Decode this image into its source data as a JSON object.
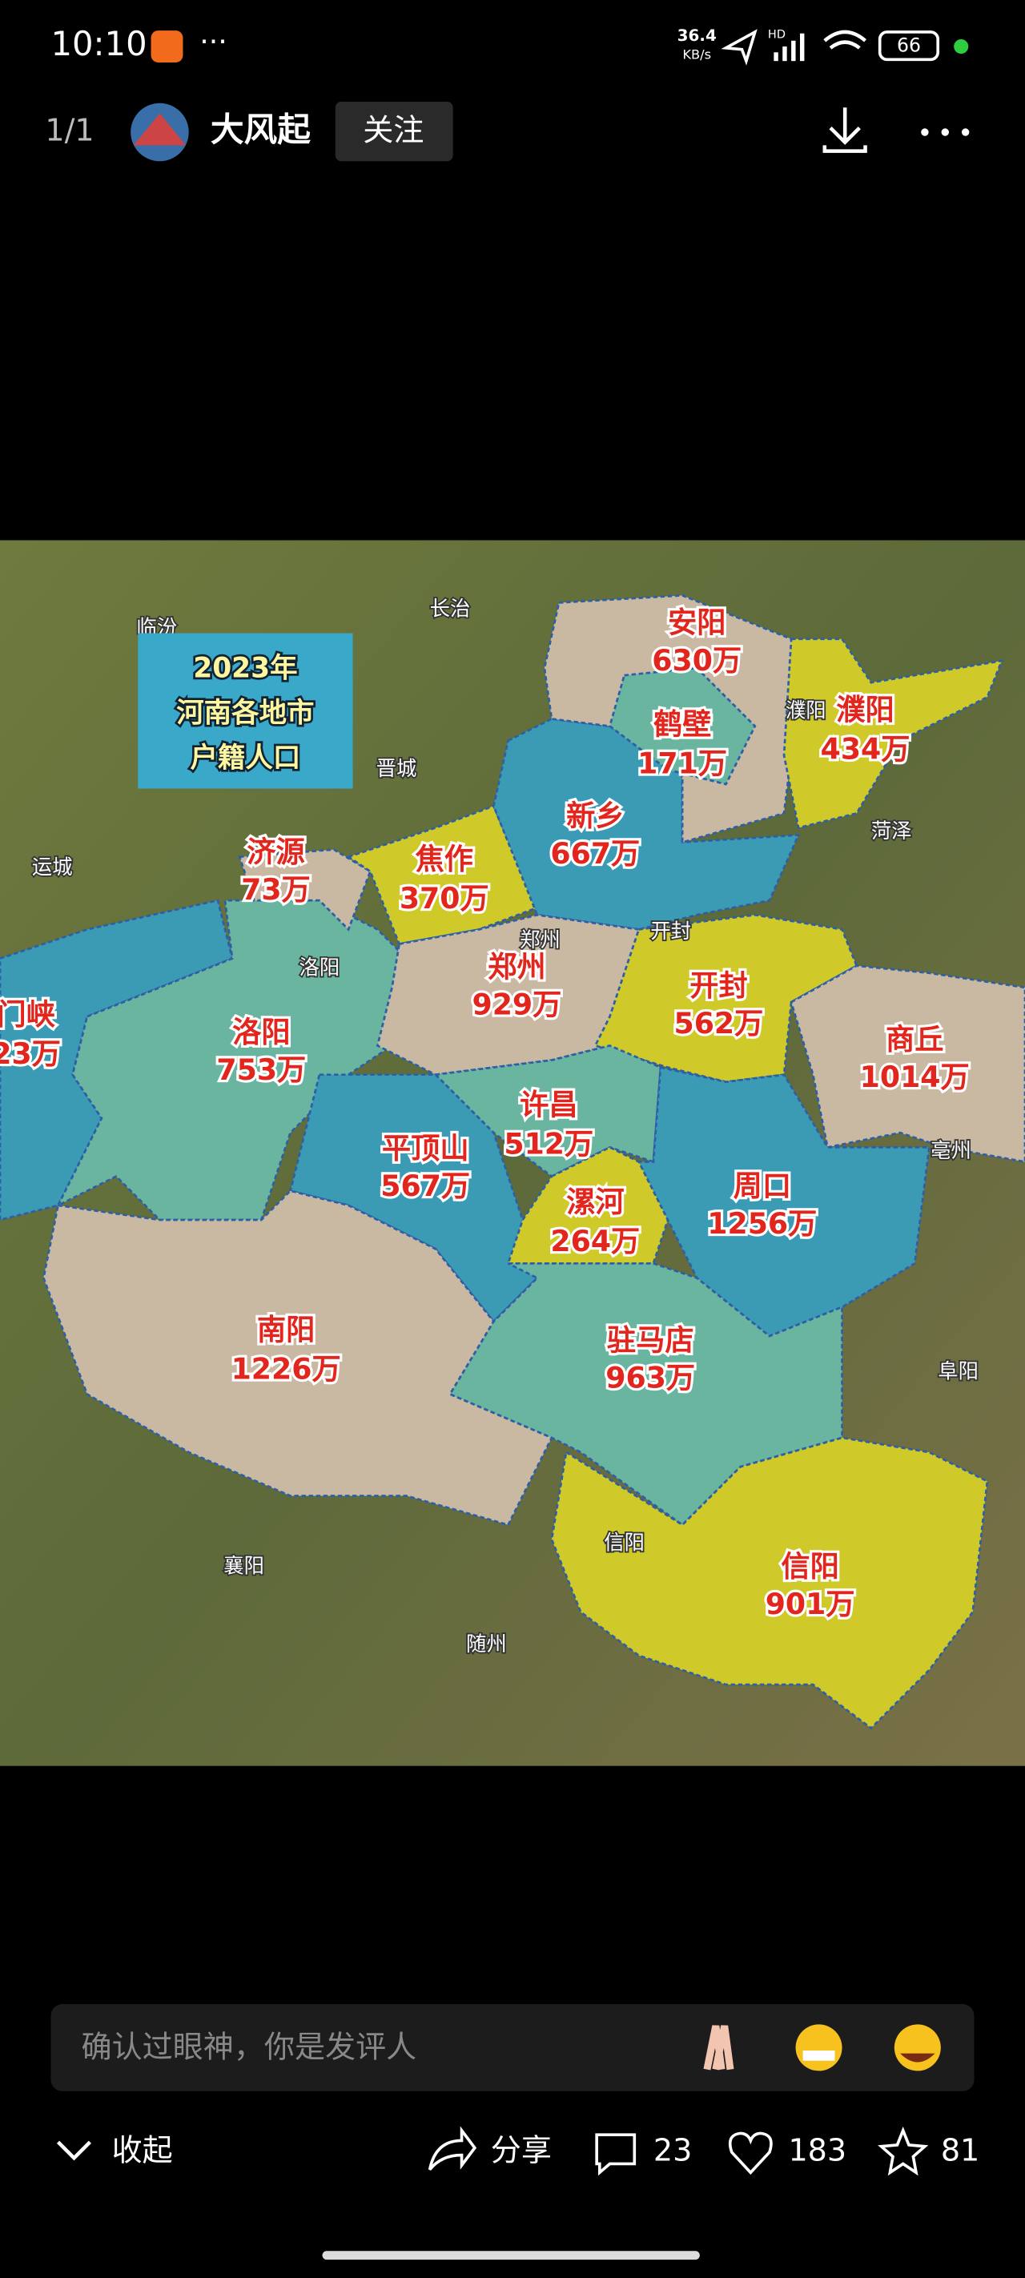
{
  "status": {
    "time": "10:10",
    "speed": "36.4",
    "speed_unit": "KB/s",
    "network": "HD",
    "battery": "66"
  },
  "header": {
    "page": "1/1",
    "user": "大风起",
    "follow": "关注"
  },
  "map": {
    "title": [
      "2023年",
      "河南各地市",
      "户籍人口"
    ],
    "regions": [
      {
        "name": "门峡",
        "population": "23万"
      },
      {
        "name": "洛阳",
        "population": "753万"
      },
      {
        "name": "济源",
        "population": "73万"
      },
      {
        "name": "焦作",
        "population": "370万"
      },
      {
        "name": "新乡",
        "population": "667万"
      },
      {
        "name": "安阳",
        "population": "630万"
      },
      {
        "name": "鹤壁",
        "population": "171万"
      },
      {
        "name": "濮阳",
        "population": "434万"
      },
      {
        "name": "郑州",
        "population": "929万"
      },
      {
        "name": "开封",
        "population": "562万"
      },
      {
        "name": "商丘",
        "population": "1014万"
      },
      {
        "name": "许昌",
        "population": "512万"
      },
      {
        "name": "平顶山",
        "population": "567万"
      },
      {
        "name": "漯河",
        "population": "264万"
      },
      {
        "name": "周口",
        "population": "1256万"
      },
      {
        "name": "南阳",
        "population": "1226万"
      },
      {
        "name": "驻马店",
        "population": "963万"
      },
      {
        "name": "信阳",
        "population": "901万"
      }
    ],
    "places": [
      "临汾",
      "长治",
      "晋城",
      "运城",
      "菏泽",
      "郑州",
      "开封",
      "洛阳",
      "亳州",
      "阜阳",
      "信阳",
      "襄阳",
      "随州",
      "濮阳"
    ]
  },
  "comment": {
    "placeholder": "确认过眼神，你是发评人"
  },
  "actions": {
    "collapse": "收起",
    "share": "分享",
    "comments": "23",
    "likes": "183",
    "stars": "81"
  }
}
